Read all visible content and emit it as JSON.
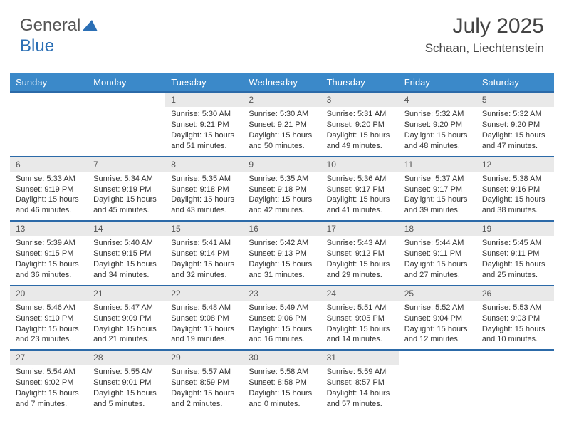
{
  "logo": {
    "word1": "General",
    "word2": "Blue"
  },
  "header": {
    "month_year": "July 2025",
    "location": "Schaan, Liechtenstein"
  },
  "colors": {
    "header_bg": "#3b89c9",
    "header_border": "#2c6aa8",
    "daynum_bg": "#e9e9e9",
    "text": "#333333",
    "logo_blue": "#2b6fb5"
  },
  "weekdays": [
    "Sunday",
    "Monday",
    "Tuesday",
    "Wednesday",
    "Thursday",
    "Friday",
    "Saturday"
  ],
  "weeks": [
    {
      "days": [
        {
          "n": "",
          "lines": []
        },
        {
          "n": "",
          "lines": []
        },
        {
          "n": "1",
          "lines": [
            "Sunrise: 5:30 AM",
            "Sunset: 9:21 PM",
            "Daylight: 15 hours and 51 minutes."
          ]
        },
        {
          "n": "2",
          "lines": [
            "Sunrise: 5:30 AM",
            "Sunset: 9:21 PM",
            "Daylight: 15 hours and 50 minutes."
          ]
        },
        {
          "n": "3",
          "lines": [
            "Sunrise: 5:31 AM",
            "Sunset: 9:20 PM",
            "Daylight: 15 hours and 49 minutes."
          ]
        },
        {
          "n": "4",
          "lines": [
            "Sunrise: 5:32 AM",
            "Sunset: 9:20 PM",
            "Daylight: 15 hours and 48 minutes."
          ]
        },
        {
          "n": "5",
          "lines": [
            "Sunrise: 5:32 AM",
            "Sunset: 9:20 PM",
            "Daylight: 15 hours and 47 minutes."
          ]
        }
      ]
    },
    {
      "days": [
        {
          "n": "6",
          "lines": [
            "Sunrise: 5:33 AM",
            "Sunset: 9:19 PM",
            "Daylight: 15 hours and 46 minutes."
          ]
        },
        {
          "n": "7",
          "lines": [
            "Sunrise: 5:34 AM",
            "Sunset: 9:19 PM",
            "Daylight: 15 hours and 45 minutes."
          ]
        },
        {
          "n": "8",
          "lines": [
            "Sunrise: 5:35 AM",
            "Sunset: 9:18 PM",
            "Daylight: 15 hours and 43 minutes."
          ]
        },
        {
          "n": "9",
          "lines": [
            "Sunrise: 5:35 AM",
            "Sunset: 9:18 PM",
            "Daylight: 15 hours and 42 minutes."
          ]
        },
        {
          "n": "10",
          "lines": [
            "Sunrise: 5:36 AM",
            "Sunset: 9:17 PM",
            "Daylight: 15 hours and 41 minutes."
          ]
        },
        {
          "n": "11",
          "lines": [
            "Sunrise: 5:37 AM",
            "Sunset: 9:17 PM",
            "Daylight: 15 hours and 39 minutes."
          ]
        },
        {
          "n": "12",
          "lines": [
            "Sunrise: 5:38 AM",
            "Sunset: 9:16 PM",
            "Daylight: 15 hours and 38 minutes."
          ]
        }
      ]
    },
    {
      "days": [
        {
          "n": "13",
          "lines": [
            "Sunrise: 5:39 AM",
            "Sunset: 9:15 PM",
            "Daylight: 15 hours and 36 minutes."
          ]
        },
        {
          "n": "14",
          "lines": [
            "Sunrise: 5:40 AM",
            "Sunset: 9:15 PM",
            "Daylight: 15 hours and 34 minutes."
          ]
        },
        {
          "n": "15",
          "lines": [
            "Sunrise: 5:41 AM",
            "Sunset: 9:14 PM",
            "Daylight: 15 hours and 32 minutes."
          ]
        },
        {
          "n": "16",
          "lines": [
            "Sunrise: 5:42 AM",
            "Sunset: 9:13 PM",
            "Daylight: 15 hours and 31 minutes."
          ]
        },
        {
          "n": "17",
          "lines": [
            "Sunrise: 5:43 AM",
            "Sunset: 9:12 PM",
            "Daylight: 15 hours and 29 minutes."
          ]
        },
        {
          "n": "18",
          "lines": [
            "Sunrise: 5:44 AM",
            "Sunset: 9:11 PM",
            "Daylight: 15 hours and 27 minutes."
          ]
        },
        {
          "n": "19",
          "lines": [
            "Sunrise: 5:45 AM",
            "Sunset: 9:11 PM",
            "Daylight: 15 hours and 25 minutes."
          ]
        }
      ]
    },
    {
      "days": [
        {
          "n": "20",
          "lines": [
            "Sunrise: 5:46 AM",
            "Sunset: 9:10 PM",
            "Daylight: 15 hours and 23 minutes."
          ]
        },
        {
          "n": "21",
          "lines": [
            "Sunrise: 5:47 AM",
            "Sunset: 9:09 PM",
            "Daylight: 15 hours and 21 minutes."
          ]
        },
        {
          "n": "22",
          "lines": [
            "Sunrise: 5:48 AM",
            "Sunset: 9:08 PM",
            "Daylight: 15 hours and 19 minutes."
          ]
        },
        {
          "n": "23",
          "lines": [
            "Sunrise: 5:49 AM",
            "Sunset: 9:06 PM",
            "Daylight: 15 hours and 16 minutes."
          ]
        },
        {
          "n": "24",
          "lines": [
            "Sunrise: 5:51 AM",
            "Sunset: 9:05 PM",
            "Daylight: 15 hours and 14 minutes."
          ]
        },
        {
          "n": "25",
          "lines": [
            "Sunrise: 5:52 AM",
            "Sunset: 9:04 PM",
            "Daylight: 15 hours and 12 minutes."
          ]
        },
        {
          "n": "26",
          "lines": [
            "Sunrise: 5:53 AM",
            "Sunset: 9:03 PM",
            "Daylight: 15 hours and 10 minutes."
          ]
        }
      ]
    },
    {
      "days": [
        {
          "n": "27",
          "lines": [
            "Sunrise: 5:54 AM",
            "Sunset: 9:02 PM",
            "Daylight: 15 hours and 7 minutes."
          ]
        },
        {
          "n": "28",
          "lines": [
            "Sunrise: 5:55 AM",
            "Sunset: 9:01 PM",
            "Daylight: 15 hours and 5 minutes."
          ]
        },
        {
          "n": "29",
          "lines": [
            "Sunrise: 5:57 AM",
            "Sunset: 8:59 PM",
            "Daylight: 15 hours and 2 minutes."
          ]
        },
        {
          "n": "30",
          "lines": [
            "Sunrise: 5:58 AM",
            "Sunset: 8:58 PM",
            "Daylight: 15 hours and 0 minutes."
          ]
        },
        {
          "n": "31",
          "lines": [
            "Sunrise: 5:59 AM",
            "Sunset: 8:57 PM",
            "Daylight: 14 hours and 57 minutes."
          ]
        },
        {
          "n": "",
          "lines": []
        },
        {
          "n": "",
          "lines": []
        }
      ]
    }
  ]
}
